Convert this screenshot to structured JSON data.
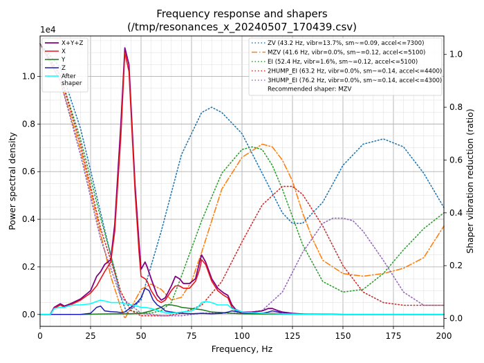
{
  "chart_data": {
    "type": "line",
    "title": "Frequency response and shapers",
    "subtitle": "(/tmp/resonances_x_20240507_170439.csv)",
    "xlabel": "Frequency, Hz",
    "ylabel": "Power spectral density",
    "y2label": "Shaper vibration reduction (ratio)",
    "y_offset_text": "1e4",
    "xlim": [
      0,
      200
    ],
    "ylim": [
      -0.05,
      1.17
    ],
    "y2lim": [
      -0.03,
      1.07
    ],
    "x_ticks": [
      "0",
      "25",
      "50",
      "75",
      "100",
      "125",
      "150",
      "175",
      "200"
    ],
    "x_tick_values": [
      0,
      25,
      50,
      75,
      100,
      125,
      150,
      175,
      200
    ],
    "y_ticks": [
      "0.0",
      "0.2",
      "0.4",
      "0.6",
      "0.8",
      "1.0"
    ],
    "y_tick_values": [
      0,
      0.2,
      0.4,
      0.6,
      0.8,
      1.0
    ],
    "y2_ticks": [
      "0.0",
      "0.2",
      "0.4",
      "0.6",
      "0.8",
      "1.0"
    ],
    "y2_tick_values": [
      0,
      0.2,
      0.4,
      0.6,
      0.8,
      1.0
    ],
    "legend_left_position": "top-left",
    "legend_right_position": "top-right",
    "psd_series": [
      {
        "name": "X+Y+Z",
        "color": "#800080",
        "width": 1.8,
        "dash": "",
        "x": [
          0,
          5,
          7,
          10,
          12,
          15,
          20,
          25,
          28,
          30,
          32,
          35,
          37,
          40,
          42,
          44,
          47,
          49,
          50,
          52,
          53,
          55,
          58,
          60,
          62,
          65,
          67,
          69,
          71,
          74,
          77,
          79,
          80,
          82,
          85,
          88,
          91,
          93,
          95,
          97,
          100,
          105,
          110,
          113,
          115,
          118,
          120,
          125,
          130,
          140,
          150,
          170,
          200
        ],
        "y": [
          0,
          0,
          0.03,
          0.045,
          0.035,
          0.045,
          0.065,
          0.1,
          0.16,
          0.18,
          0.21,
          0.23,
          0.38,
          0.8,
          1.12,
          1.05,
          0.55,
          0.3,
          0.19,
          0.22,
          0.2,
          0.15,
          0.08,
          0.06,
          0.07,
          0.12,
          0.16,
          0.15,
          0.13,
          0.13,
          0.15,
          0.22,
          0.25,
          0.22,
          0.15,
          0.11,
          0.09,
          0.08,
          0.04,
          0.02,
          0.01,
          0.01,
          0.015,
          0.025,
          0.025,
          0.015,
          0.01,
          0.005,
          0.002,
          0.001,
          0,
          0,
          0
        ]
      },
      {
        "name": "X",
        "color": "#e8141c",
        "width": 1.6,
        "dash": "",
        "x": [
          0,
          5,
          7,
          10,
          12,
          15,
          20,
          25,
          28,
          30,
          32,
          35,
          37,
          40,
          42,
          44,
          47,
          49,
          50,
          52,
          53,
          55,
          58,
          60,
          62,
          65,
          67,
          69,
          71,
          74,
          77,
          79,
          80,
          82,
          85,
          88,
          91,
          93,
          95,
          97,
          100,
          105,
          110,
          113,
          115,
          118,
          120,
          125,
          130,
          140,
          150,
          170,
          200
        ],
        "y": [
          0,
          0,
          0.025,
          0.04,
          0.03,
          0.04,
          0.06,
          0.09,
          0.12,
          0.15,
          0.18,
          0.22,
          0.35,
          0.75,
          1.1,
          1.02,
          0.52,
          0.26,
          0.16,
          0.15,
          0.14,
          0.1,
          0.06,
          0.05,
          0.06,
          0.1,
          0.12,
          0.12,
          0.11,
          0.11,
          0.14,
          0.19,
          0.23,
          0.21,
          0.14,
          0.1,
          0.08,
          0.07,
          0.03,
          0.015,
          0.005,
          0.005,
          0.005,
          0.005,
          0.005,
          0.004,
          0.003,
          0.002,
          0.001,
          0,
          0,
          0,
          0
        ]
      },
      {
        "name": "Y",
        "color": "#1a7a1a",
        "width": 1.5,
        "dash": "",
        "x": [
          0,
          20,
          30,
          40,
          45,
          50,
          55,
          60,
          62,
          65,
          68,
          70,
          75,
          80,
          85,
          90,
          95,
          100,
          110,
          125,
          150,
          200
        ],
        "y": [
          0,
          0,
          0.002,
          0.003,
          0.003,
          0.005,
          0.015,
          0.03,
          0.04,
          0.04,
          0.035,
          0.03,
          0.025,
          0.02,
          0.01,
          0.008,
          0.005,
          0.003,
          0.002,
          0.001,
          0,
          0
        ]
      },
      {
        "name": "Z",
        "color": "#1a1ab4",
        "width": 1.5,
        "dash": "",
        "x": [
          0,
          20,
          25,
          28,
          30,
          32,
          35,
          38,
          40,
          42,
          45,
          48,
          50,
          52,
          54,
          56,
          58,
          60,
          62,
          65,
          70,
          75,
          80,
          85,
          90,
          93,
          95,
          100,
          105,
          110,
          113,
          115,
          118,
          120,
          125,
          135,
          150,
          200
        ],
        "y": [
          0,
          0,
          0.005,
          0.03,
          0.035,
          0.015,
          0.012,
          0.01,
          0.008,
          0.01,
          0.03,
          0.05,
          0.07,
          0.11,
          0.1,
          0.06,
          0.04,
          0.03,
          0.015,
          0.01,
          0.005,
          0.003,
          0.005,
          0.003,
          0.005,
          0.01,
          0.015,
          0.008,
          0.005,
          0.005,
          0.01,
          0.015,
          0.01,
          0.005,
          0.003,
          0.001,
          0,
          0
        ]
      },
      {
        "name": "After shaper",
        "color": "#00ffff",
        "width": 1.6,
        "dash": "",
        "x": [
          0,
          5,
          7,
          10,
          12,
          15,
          18,
          20,
          25,
          28,
          30,
          33,
          35,
          38,
          40,
          42,
          45,
          48,
          50,
          52,
          55,
          58,
          60,
          62,
          65,
          68,
          70,
          72,
          75,
          78,
          80,
          82,
          85,
          88,
          90,
          93,
          95,
          100,
          110,
          120,
          130,
          150,
          200
        ],
        "y": [
          0,
          0,
          0.025,
          0.03,
          0.03,
          0.038,
          0.04,
          0.04,
          0.045,
          0.055,
          0.06,
          0.055,
          0.05,
          0.05,
          0.05,
          0.045,
          0.04,
          0.035,
          0.03,
          0.03,
          0.025,
          0.018,
          0.012,
          0.008,
          0.006,
          0.008,
          0.01,
          0.012,
          0.015,
          0.03,
          0.05,
          0.055,
          0.05,
          0.04,
          0.04,
          0.04,
          0.025,
          0.01,
          0.005,
          0.003,
          0.001,
          0,
          0
        ]
      }
    ],
    "shaper_series": [
      {
        "name": "ZV (43.2 Hz, vibr=13.7%, sm~=0.09, accel<=7300)",
        "color": "#1f77b4",
        "width": 1.6,
        "dash": "1.5,3",
        "x": [
          0,
          10,
          20,
          30,
          40,
          43,
          50,
          60,
          70,
          80,
          85,
          90,
          100,
          110,
          120,
          125,
          130,
          140,
          150,
          160,
          170,
          180,
          190,
          200
        ],
        "y": [
          1.04,
          0.95,
          0.72,
          0.4,
          0.08,
          0.02,
          0.07,
          0.33,
          0.62,
          0.78,
          0.8,
          0.78,
          0.7,
          0.55,
          0.4,
          0.36,
          0.36,
          0.44,
          0.58,
          0.66,
          0.68,
          0.65,
          0.55,
          0.42
        ]
      },
      {
        "name": "MZV (41.6 Hz, vibr=0.0%, sm~=0.12, accel<=5100)",
        "color": "#ff7f0e",
        "width": 1.6,
        "dash": "8,3,1.5,3",
        "x": [
          0,
          10,
          20,
          30,
          35,
          40,
          42,
          45,
          50,
          55,
          60,
          65,
          70,
          75,
          80,
          85,
          90,
          100,
          110,
          115,
          120,
          125,
          130,
          135,
          140,
          150,
          160,
          170,
          180,
          190,
          200
        ],
        "y": [
          1.04,
          0.9,
          0.64,
          0.32,
          0.16,
          0.04,
          0.0,
          0.04,
          0.11,
          0.13,
          0.11,
          0.07,
          0.08,
          0.14,
          0.25,
          0.37,
          0.49,
          0.61,
          0.66,
          0.65,
          0.6,
          0.52,
          0.4,
          0.3,
          0.22,
          0.17,
          0.16,
          0.17,
          0.19,
          0.23,
          0.35
        ]
      },
      {
        "name": "EI (52.4 Hz, vibr=1.6%, sm~=0.12, accel<=5100)",
        "color": "#2ca02c",
        "width": 1.6,
        "dash": "1.5,3",
        "x": [
          0,
          10,
          20,
          30,
          40,
          45,
          50,
          55,
          60,
          65,
          70,
          80,
          90,
          100,
          105,
          110,
          115,
          120,
          130,
          140,
          150,
          160,
          170,
          180,
          190,
          200
        ],
        "y": [
          1.04,
          0.92,
          0.68,
          0.38,
          0.1,
          0.03,
          0.02,
          0.02,
          0.03,
          0.06,
          0.16,
          0.37,
          0.55,
          0.64,
          0.65,
          0.64,
          0.58,
          0.49,
          0.28,
          0.14,
          0.1,
          0.11,
          0.17,
          0.26,
          0.34,
          0.4
        ]
      },
      {
        "name": "2HUMP_EI (63.2 Hz, vibr=0.0%, sm~=0.14, accel<=4400)",
        "color": "#d62728",
        "width": 1.6,
        "dash": "1.5,3",
        "x": [
          0,
          10,
          20,
          30,
          40,
          45,
          50,
          55,
          60,
          63,
          70,
          80,
          90,
          100,
          110,
          120,
          125,
          130,
          140,
          150,
          160,
          170,
          180,
          190,
          200
        ],
        "y": [
          1.04,
          0.92,
          0.66,
          0.34,
          0.1,
          0.03,
          0.01,
          0.01,
          0.01,
          0.01,
          0.02,
          0.05,
          0.14,
          0.29,
          0.43,
          0.5,
          0.5,
          0.47,
          0.35,
          0.2,
          0.1,
          0.06,
          0.05,
          0.05,
          0.05
        ]
      },
      {
        "name": "3HUMP_EI (76.2 Hz, vibr=0.0%, sm~=0.14, accel<=4300)",
        "color": "#9467bd",
        "width": 1.6,
        "dash": "1.5,3",
        "x": [
          0,
          10,
          20,
          30,
          40,
          50,
          60,
          70,
          80,
          90,
          100,
          110,
          120,
          130,
          140,
          145,
          150,
          155,
          160,
          170,
          180,
          190,
          200
        ],
        "y": [
          1.04,
          0.9,
          0.62,
          0.3,
          0.08,
          0.02,
          0.01,
          0.01,
          0.02,
          0.02,
          0.02,
          0.03,
          0.1,
          0.25,
          0.36,
          0.38,
          0.38,
          0.37,
          0.33,
          0.22,
          0.1,
          0.05,
          0.05
        ]
      }
    ],
    "legend_note": "Recommended shaper: MZV"
  }
}
